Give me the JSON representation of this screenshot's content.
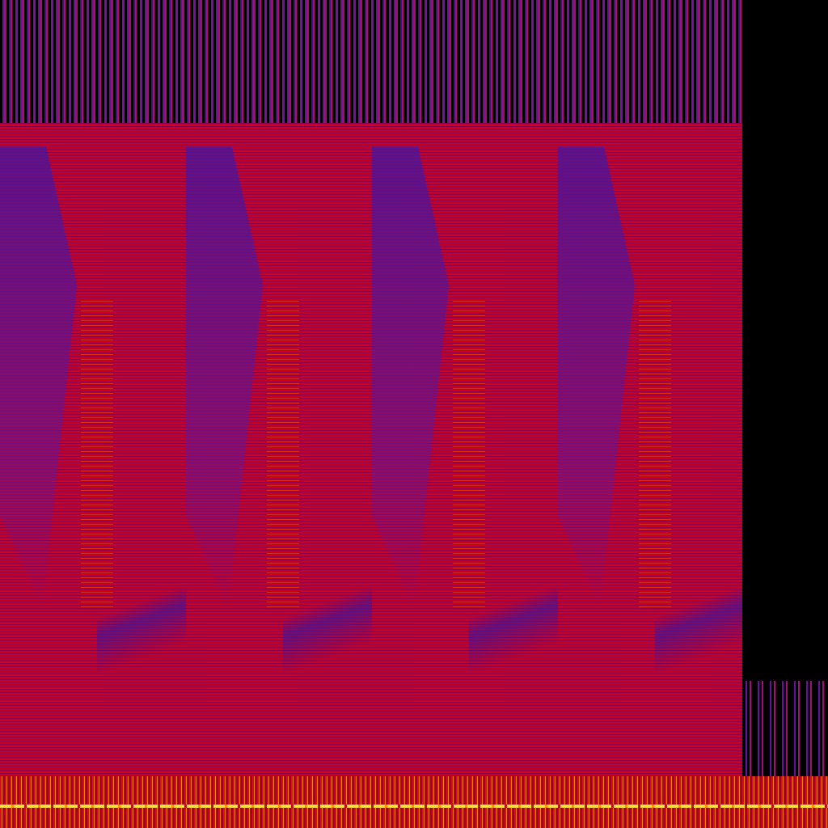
{
  "image": {
    "kind": "spectrogram",
    "colormap": [
      "#000000",
      "#5a0a90",
      "#c8001e",
      "#ff8000",
      "#ffe040"
    ],
    "repeating_panels": 4
  }
}
